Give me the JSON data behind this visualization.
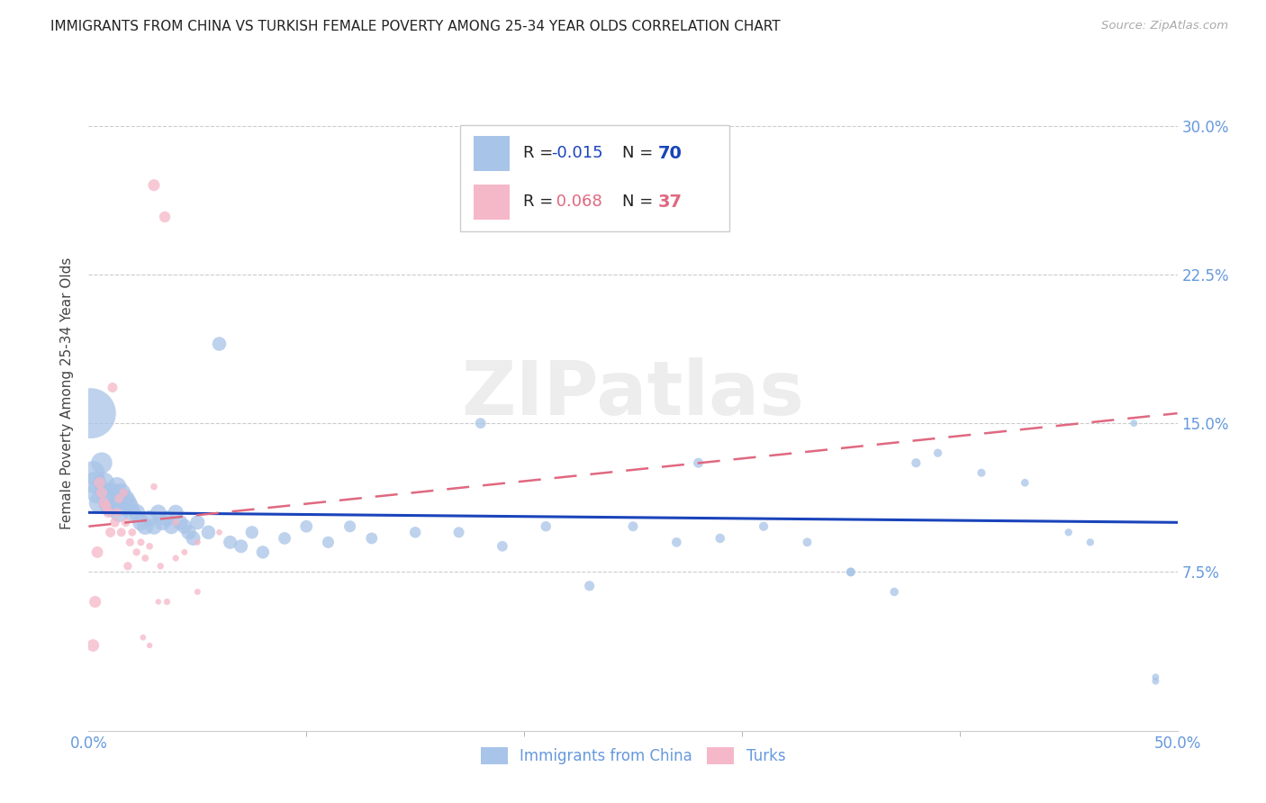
{
  "title": "IMMIGRANTS FROM CHINA VS TURKISH FEMALE POVERTY AMONG 25-34 YEAR OLDS CORRELATION CHART",
  "source": "Source: ZipAtlas.com",
  "ylabel": "Female Poverty Among 25-34 Year Olds",
  "legend_label1": "Immigrants from China",
  "legend_label2": "Turks",
  "legend_R1": "-0.015",
  "legend_N1": "70",
  "legend_R2": "0.068",
  "legend_N2": "37",
  "xlim": [
    0.0,
    0.5
  ],
  "ylim": [
    -0.005,
    0.335
  ],
  "yticks": [
    0.075,
    0.15,
    0.225,
    0.3
  ],
  "ytick_labels": [
    "7.5%",
    "15.0%",
    "22.5%",
    "30.0%"
  ],
  "color_blue": "#a8c4e8",
  "color_pink": "#f5b8c8",
  "color_blue_line": "#1a44bb",
  "color_pink_line": "#e06880",
  "color_axis_label": "#6699dd",
  "color_title": "#222222",
  "color_source": "#aaaaaa",
  "watermark": "ZIPatlas",
  "blue_x": [
    0.001,
    0.002,
    0.003,
    0.004,
    0.005,
    0.006,
    0.007,
    0.008,
    0.009,
    0.01,
    0.011,
    0.012,
    0.013,
    0.014,
    0.015,
    0.016,
    0.017,
    0.018,
    0.019,
    0.02,
    0.022,
    0.024,
    0.026,
    0.028,
    0.03,
    0.032,
    0.034,
    0.036,
    0.038,
    0.04,
    0.042,
    0.044,
    0.046,
    0.048,
    0.05,
    0.055,
    0.06,
    0.065,
    0.07,
    0.075,
    0.08,
    0.09,
    0.1,
    0.11,
    0.12,
    0.13,
    0.15,
    0.17,
    0.19,
    0.21,
    0.23,
    0.25,
    0.27,
    0.29,
    0.31,
    0.33,
    0.35,
    0.37,
    0.39,
    0.41,
    0.43,
    0.45,
    0.46,
    0.48,
    0.49,
    0.18,
    0.28,
    0.38,
    0.35,
    0.49
  ],
  "blue_y": [
    0.155,
    0.125,
    0.12,
    0.115,
    0.11,
    0.13,
    0.12,
    0.115,
    0.11,
    0.108,
    0.115,
    0.112,
    0.118,
    0.105,
    0.115,
    0.108,
    0.112,
    0.11,
    0.108,
    0.105,
    0.105,
    0.1,
    0.098,
    0.102,
    0.098,
    0.105,
    0.1,
    0.102,
    0.098,
    0.105,
    0.1,
    0.098,
    0.095,
    0.092,
    0.1,
    0.095,
    0.19,
    0.09,
    0.088,
    0.095,
    0.085,
    0.092,
    0.098,
    0.09,
    0.098,
    0.092,
    0.095,
    0.095,
    0.088,
    0.098,
    0.068,
    0.098,
    0.09,
    0.092,
    0.098,
    0.09,
    0.075,
    0.065,
    0.135,
    0.125,
    0.12,
    0.095,
    0.09,
    0.15,
    0.022,
    0.15,
    0.13,
    0.13,
    0.075,
    0.02
  ],
  "blue_size": [
    900,
    200,
    180,
    170,
    160,
    160,
    155,
    150,
    145,
    145,
    140,
    135,
    130,
    130,
    125,
    120,
    115,
    115,
    110,
    110,
    105,
    100,
    100,
    95,
    95,
    90,
    90,
    88,
    85,
    85,
    82,
    80,
    78,
    75,
    75,
    70,
    70,
    65,
    65,
    60,
    60,
    55,
    55,
    50,
    50,
    48,
    45,
    42,
    40,
    38,
    36,
    35,
    33,
    32,
    30,
    28,
    27,
    26,
    25,
    24,
    22,
    20,
    20,
    18,
    18,
    40,
    35,
    30,
    28,
    18
  ],
  "pink_x": [
    0.002,
    0.003,
    0.004,
    0.005,
    0.006,
    0.007,
    0.008,
    0.009,
    0.01,
    0.011,
    0.012,
    0.013,
    0.014,
    0.015,
    0.016,
    0.017,
    0.018,
    0.019,
    0.02,
    0.022,
    0.024,
    0.026,
    0.028,
    0.03,
    0.033,
    0.036,
    0.04,
    0.044,
    0.05,
    0.06,
    0.035,
    0.03,
    0.04,
    0.05,
    0.025,
    0.028,
    0.032
  ],
  "pink_y": [
    0.038,
    0.06,
    0.085,
    0.12,
    0.115,
    0.11,
    0.108,
    0.105,
    0.095,
    0.168,
    0.1,
    0.105,
    0.112,
    0.095,
    0.115,
    0.1,
    0.078,
    0.09,
    0.095,
    0.085,
    0.09,
    0.082,
    0.088,
    0.118,
    0.078,
    0.06,
    0.1,
    0.085,
    0.09,
    0.095,
    0.254,
    0.27,
    0.082,
    0.065,
    0.042,
    0.038,
    0.06
  ],
  "pink_size": [
    55,
    50,
    48,
    45,
    43,
    42,
    40,
    38,
    36,
    35,
    33,
    32,
    30,
    28,
    27,
    26,
    25,
    24,
    22,
    20,
    19,
    18,
    17,
    17,
    16,
    15,
    15,
    14,
    14,
    13,
    45,
    50,
    15,
    14,
    13,
    12,
    12
  ]
}
